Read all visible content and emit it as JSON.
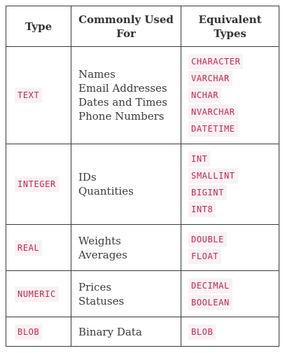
{
  "headers": {
    "type": "Type",
    "used_line1": "Commonly Used",
    "used_line2": "For",
    "equiv_line1": "Equivalent",
    "equiv_line2": "Types"
  },
  "rows": [
    {
      "type": "TEXT",
      "used": [
        "Names",
        "Email Addresses",
        "Dates and Times",
        "Phone Numbers"
      ],
      "equiv": [
        "CHARACTER",
        "VARCHAR",
        "NCHAR",
        "NVARCHAR",
        "DATETIME"
      ]
    },
    {
      "type": "INTEGER",
      "used": [
        "IDs",
        "Quantities"
      ],
      "equiv": [
        "INT",
        "SMALLINT",
        "BIGINT",
        "INT8"
      ]
    },
    {
      "type": "REAL",
      "used": [
        "Weights",
        "Averages"
      ],
      "equiv": [
        "DOUBLE",
        "FLOAT"
      ]
    },
    {
      "type": "NUMERIC",
      "used": [
        "Prices",
        "Statuses"
      ],
      "equiv": [
        "DECIMAL",
        "BOOLEAN"
      ]
    },
    {
      "type": "BLOB",
      "used": [
        "Binary Data"
      ],
      "equiv": [
        "BLOB"
      ]
    }
  ]
}
